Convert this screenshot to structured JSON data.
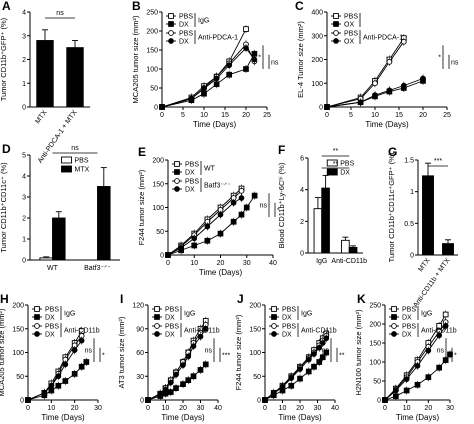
{
  "chart_data": [
    {
      "panel": "A",
      "type": "bar",
      "ylabel": "Tumor CD11b⁺GFP⁺ (%)",
      "ylim": [
        0,
        4
      ],
      "yticks": [
        0,
        1,
        2,
        3,
        4
      ],
      "categories": [
        "MTX",
        "Anti-PDCA-1 + MTX"
      ],
      "values": [
        2.8,
        2.5
      ],
      "errors": [
        0.45,
        0.3
      ],
      "fills": [
        "#000000",
        "#000000"
      ],
      "significance": [
        "ns"
      ]
    },
    {
      "panel": "B",
      "type": "line",
      "ylabel": "MCA205 tumor size (mm²)",
      "xlabel": "Time (Days)",
      "xlim": [
        0,
        25
      ],
      "ylim": [
        0,
        250
      ],
      "xticks": [
        0,
        5,
        10,
        15,
        20,
        25
      ],
      "yticks": [
        0,
        50,
        100,
        150,
        200,
        250
      ],
      "x": [
        0,
        7,
        10,
        13,
        16,
        20,
        22
      ],
      "legend": [
        {
          "labels": [
            "PBS",
            "DX"
          ],
          "group": "IgG"
        },
        {
          "labels": [
            "PBS",
            "DX"
          ],
          "group": "Anti-PDCA-1"
        }
      ],
      "series": [
        {
          "marker": "square-open",
          "values": [
            0,
            25,
            55,
            80,
            120,
            205,
            null
          ]
        },
        {
          "marker": "square-filled",
          "values": [
            0,
            18,
            35,
            60,
            85,
            100,
            140
          ]
        },
        {
          "marker": "circle-open",
          "values": [
            0,
            22,
            50,
            80,
            115,
            165,
            120
          ]
        },
        {
          "marker": "circle-filled",
          "values": [
            0,
            22,
            48,
            75,
            110,
            155,
            125
          ]
        }
      ],
      "annotations": [
        "*",
        "ns"
      ]
    },
    {
      "panel": "C",
      "type": "line",
      "ylabel": "EL-4 Tumor size (mm²)",
      "xlabel": "Time (Days)",
      "xlim": [
        0,
        25
      ],
      "ylim": [
        0,
        400
      ],
      "xticks": [
        0,
        5,
        10,
        15,
        20,
        25
      ],
      "yticks": [
        0,
        100,
        200,
        300,
        400
      ],
      "x": [
        0,
        7,
        10,
        13,
        16,
        20
      ],
      "legend": [
        {
          "labels": [
            "PBS",
            "OX"
          ],
          "group": ""
        },
        {
          "labels": [
            "PBS",
            "OX"
          ],
          "group": "Anti-PDCA-1"
        }
      ],
      "series": [
        {
          "marker": "square-open",
          "values": [
            0,
            40,
            110,
            200,
            290,
            null
          ]
        },
        {
          "marker": "square-filled",
          "values": [
            0,
            20,
            45,
            65,
            80,
            110
          ]
        },
        {
          "marker": "circle-open",
          "values": [
            0,
            35,
            100,
            190,
            275,
            null
          ]
        },
        {
          "marker": "circle-filled",
          "values": [
            0,
            20,
            50,
            70,
            90,
            120
          ]
        }
      ],
      "annotations": [
        "*",
        "ns"
      ]
    },
    {
      "panel": "D",
      "type": "bar",
      "ylabel": "Tumor CD11b⁺CD11c⁺ (%)",
      "ylim": [
        0,
        5
      ],
      "yticks": [
        0,
        1,
        2,
        3,
        4,
        5
      ],
      "legend": [
        "PBS",
        "MTX"
      ],
      "groups": [
        "WT",
        "Batf3⁻ᐟ⁻"
      ],
      "series": [
        {
          "name": "PBS",
          "fill": "#ffffff",
          "values": [
            0.1,
            null
          ],
          "errors": [
            0.05,
            null
          ]
        },
        {
          "name": "MTX",
          "fill": "#000000",
          "values": [
            2.0,
            3.5
          ],
          "errors": [
            0.3,
            0.9
          ]
        }
      ],
      "significance": [
        "ns"
      ]
    },
    {
      "panel": "E",
      "type": "line",
      "ylabel": "F244 tumor size (mm²)",
      "xlabel": "Time (Days)",
      "xlim": [
        0,
        40
      ],
      "ylim": [
        0,
        200
      ],
      "xticks": [
        0,
        10,
        20,
        30,
        40
      ],
      "yticks": [
        0,
        50,
        100,
        150,
        200
      ],
      "x": [
        0,
        5,
        10,
        15,
        20,
        25,
        28,
        30,
        33
      ],
      "legend": [
        {
          "labels": [
            "PBS",
            "DX"
          ],
          "group": "WT"
        },
        {
          "labels": [
            "PBS",
            "DX"
          ],
          "group": "Batf3⁻ᐟ⁻"
        }
      ],
      "series": [
        {
          "marker": "square-open",
          "values": [
            0,
            20,
            45,
            75,
            100,
            125,
            140,
            null,
            null
          ]
        },
        {
          "marker": "square-filled",
          "values": [
            0,
            10,
            20,
            30,
            45,
            70,
            85,
            100,
            125
          ]
        },
        {
          "marker": "circle-open",
          "values": [
            0,
            18,
            42,
            70,
            95,
            120,
            135,
            null,
            null
          ]
        },
        {
          "marker": "circle-filled",
          "values": [
            0,
            15,
            35,
            60,
            85,
            110,
            120,
            null,
            null
          ]
        }
      ],
      "annotations": [
        "ns",
        "*"
      ]
    },
    {
      "panel": "F",
      "type": "bar",
      "ylabel": "Blood CD11b⁺Ly-6Cʰⁱ (%)",
      "ylim": [
        0,
        6
      ],
      "yticks": [
        0,
        2,
        4,
        6
      ],
      "legend": [
        "PBS",
        "DX"
      ],
      "groups": [
        "IgG",
        "Anti-CD11b"
      ],
      "series": [
        {
          "name": "PBS",
          "fill": "#ffffff",
          "values": [
            2.8,
            0.8
          ],
          "errors": [
            0.7,
            0.2
          ]
        },
        {
          "name": "DX",
          "fill": "#000000",
          "values": [
            4.1,
            0.35
          ],
          "errors": [
            0.8,
            0.1
          ]
        }
      ],
      "significance": [
        "**",
        "**"
      ]
    },
    {
      "panel": "G",
      "type": "bar",
      "ylabel": "Tumor CD11b⁺CD11c⁺GFP⁺ (%)",
      "ylim": [
        0,
        1.5
      ],
      "yticks": [
        0,
        0.5,
        1.0,
        1.5
      ],
      "categories": [
        "MTX",
        "Anti-CD11b + MTX"
      ],
      "values": [
        1.25,
        0.18
      ],
      "errors": [
        0.2,
        0.06
      ],
      "fills": [
        "#000000",
        "#000000"
      ],
      "significance": [
        "***"
      ]
    },
    {
      "panel": "H",
      "type": "line",
      "ylabel": "MCA205 tumor size (mm²)",
      "xlabel": "Time (Days)",
      "xlim": [
        0,
        30
      ],
      "ylim": [
        0,
        200
      ],
      "xticks": [
        0,
        10,
        20,
        30
      ],
      "yticks": [
        0,
        50,
        100,
        150,
        200
      ],
      "x": [
        0,
        7,
        10,
        13,
        16,
        20,
        23,
        25
      ],
      "legend": [
        {
          "labels": [
            "PBS",
            "DX"
          ],
          "group": "IgG"
        },
        {
          "labels": [
            "PBS",
            "DX"
          ],
          "group": "Anti-CD11b"
        }
      ],
      "series": [
        {
          "marker": "square-open",
          "values": [
            0,
            15,
            35,
            60,
            90,
            120,
            145,
            null
          ]
        },
        {
          "marker": "square-filled",
          "values": [
            0,
            10,
            20,
            30,
            40,
            55,
            70,
            80
          ]
        },
        {
          "marker": "circle-open",
          "values": [
            0,
            15,
            30,
            55,
            85,
            115,
            135,
            null
          ]
        },
        {
          "marker": "circle-filled",
          "values": [
            0,
            15,
            30,
            50,
            75,
            105,
            125,
            null
          ]
        }
      ],
      "annotations": [
        "ns",
        "*"
      ]
    },
    {
      "panel": "I",
      "type": "line",
      "ylabel": "AT3 tumor size (mm²)",
      "xlabel": "Time (Days)",
      "xlim": [
        0,
        40
      ],
      "ylim": [
        0,
        120
      ],
      "xticks": [
        0,
        10,
        20,
        30,
        40
      ],
      "yticks": [
        0,
        30,
        60,
        90,
        120
      ],
      "x": [
        0,
        7,
        10,
        13,
        16,
        20,
        23,
        26,
        30,
        33
      ],
      "legend": [
        {
          "labels": [
            "PBS",
            "DX"
          ],
          "group": "IgG"
        },
        {
          "labels": [
            "PBS",
            "DX"
          ],
          "group": "Anti-CD11b"
        }
      ],
      "series": [
        {
          "marker": "square-open",
          "values": [
            0,
            8,
            15,
            25,
            35,
            48,
            60,
            75,
            90,
            100
          ]
        },
        {
          "marker": "square-filled",
          "values": [
            0,
            5,
            8,
            10,
            15,
            20,
            25,
            30,
            38,
            45
          ]
        },
        {
          "marker": "circle-open",
          "values": [
            0,
            8,
            15,
            25,
            35,
            48,
            60,
            72,
            85,
            95
          ]
        },
        {
          "marker": "circle-filled",
          "values": [
            0,
            7,
            13,
            22,
            32,
            44,
            55,
            68,
            80,
            90
          ]
        }
      ],
      "annotations": [
        "ns",
        "***"
      ]
    },
    {
      "panel": "J",
      "type": "line",
      "ylabel": "F244 tumor size (mm²)",
      "xlabel": "Time (Days)",
      "xlim": [
        0,
        40
      ],
      "ylim": [
        0,
        200
      ],
      "xticks": [
        0,
        10,
        20,
        30,
        40
      ],
      "yticks": [
        0,
        50,
        100,
        150,
        200
      ],
      "x": [
        0,
        5,
        10,
        15,
        20,
        25,
        28,
        31,
        33,
        35
      ],
      "legend": [
        {
          "labels": [
            "PBS",
            "DX"
          ],
          "group": "IgG"
        },
        {
          "labels": [
            "PBS",
            "DX"
          ],
          "group": "Anti-CD11b"
        }
      ],
      "series": [
        {
          "marker": "square-open",
          "values": [
            0,
            15,
            30,
            50,
            70,
            90,
            105,
            120,
            130,
            140
          ]
        },
        {
          "marker": "square-filled",
          "values": [
            0,
            10,
            20,
            30,
            45,
            60,
            70,
            80,
            90,
            100
          ]
        },
        {
          "marker": "circle-open",
          "values": [
            0,
            15,
            28,
            48,
            68,
            88,
            100,
            115,
            125,
            135
          ]
        },
        {
          "marker": "circle-filled",
          "values": [
            0,
            14,
            27,
            46,
            65,
            85,
            97,
            110,
            120,
            130
          ]
        }
      ],
      "annotations": [
        "ns",
        "**"
      ]
    },
    {
      "panel": "K",
      "type": "line",
      "ylabel": "H2N100 tumor size (mm²)",
      "xlabel": "Time (Days)",
      "xlim": [
        0,
        30
      ],
      "ylim": [
        0,
        250
      ],
      "xticks": [
        0,
        10,
        20,
        30
      ],
      "yticks": [
        0,
        50,
        100,
        150,
        200,
        250
      ],
      "x": [
        0,
        5,
        10,
        15,
        20,
        25,
        28,
        30
      ],
      "legend": [
        {
          "labels": [
            "PBS",
            "DX"
          ],
          "group": "IgG"
        },
        {
          "labels": [
            "PBS",
            "DX"
          ],
          "group": "Anti-CD11b"
        }
      ],
      "series": [
        {
          "marker": "square-open",
          "values": [
            0,
            30,
            65,
            105,
            150,
            195,
            225,
            null
          ]
        },
        {
          "marker": "square-filled",
          "values": [
            0,
            10,
            25,
            40,
            60,
            85,
            105,
            120
          ]
        },
        {
          "marker": "circle-open",
          "values": [
            0,
            28,
            60,
            100,
            140,
            180,
            205,
            null
          ]
        },
        {
          "marker": "circle-filled",
          "values": [
            0,
            25,
            55,
            90,
            130,
            170,
            195,
            null
          ]
        }
      ],
      "annotations": [
        "ns",
        "*"
      ]
    }
  ]
}
